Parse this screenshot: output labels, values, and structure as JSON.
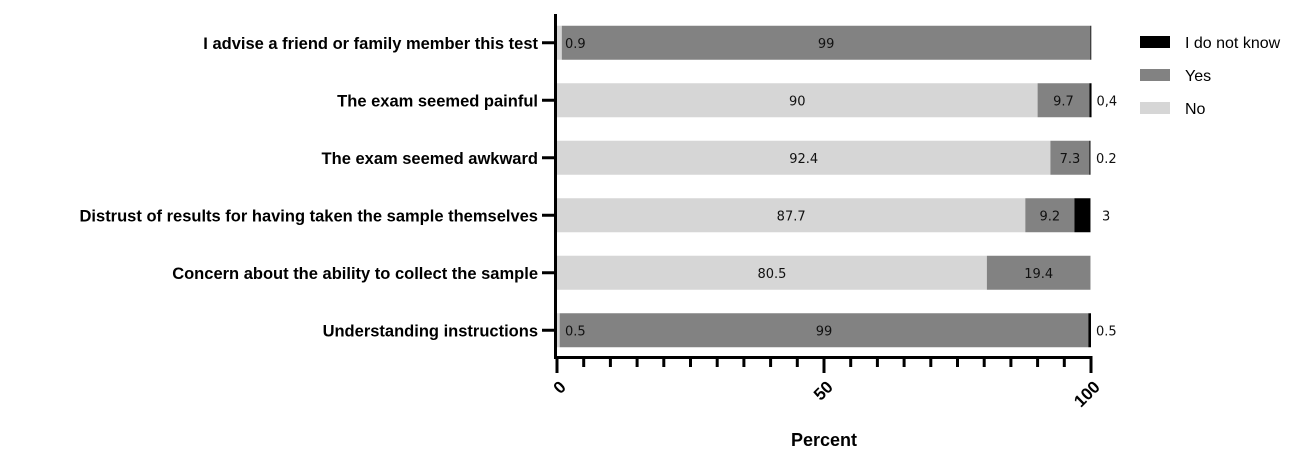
{
  "chart_data": {
    "type": "bar",
    "orientation": "horizontal",
    "stacked": true,
    "categories": [
      "I advise a friend or family member this test",
      "The exam seemed painful",
      "The exam seemed awkward",
      "Distrust of results for having taken the sample themselves",
      "Concern about the ability to collect the sample",
      "Understanding instructions"
    ],
    "series": [
      {
        "name": "No",
        "color": "#d6d6d6",
        "values": [
          0.9,
          90,
          92.4,
          87.7,
          80.5,
          0.5
        ],
        "labels": [
          "0.9",
          "90",
          "92.4",
          "87.7",
          "80.5",
          "0.5"
        ]
      },
      {
        "name": "Yes",
        "color": "#828282",
        "values": [
          99,
          9.7,
          7.3,
          9.2,
          19.4,
          99
        ],
        "labels": [
          "99",
          "9.7",
          "7.3",
          "9.2",
          "19.4",
          "99"
        ]
      },
      {
        "name": "I do not know",
        "color": "#000000",
        "values": [
          0.1,
          0.4,
          0.2,
          3,
          0,
          0.5
        ],
        "labels": [
          "",
          "0,4",
          "0.2",
          "3",
          "",
          "0.5"
        ]
      }
    ],
    "legend_order": [
      "I do not know",
      "Yes",
      "No"
    ],
    "legend_position": "top-right",
    "xlabel": "Percent",
    "xlim": [
      0,
      100
    ],
    "xticks": [
      0,
      50,
      100
    ],
    "xtick_labels": [
      "0",
      "50",
      "100"
    ],
    "grid": false
  }
}
